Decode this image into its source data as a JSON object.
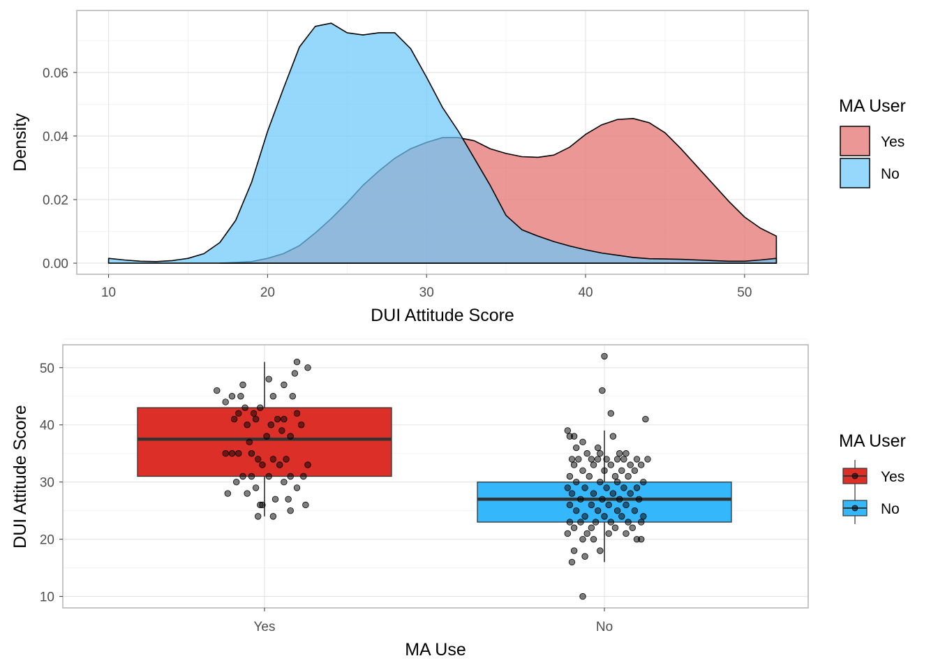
{
  "chart_data": [
    {
      "type": "area",
      "subtype": "density",
      "title": "",
      "xlabel": "DUI Attitude Score",
      "ylabel": "Density",
      "xlim": [
        8,
        54
      ],
      "ylim": [
        -0.0035,
        0.0795
      ],
      "x_ticks": [
        10,
        20,
        30,
        40,
        50
      ],
      "y_ticks": [
        0.0,
        0.02,
        0.04,
        0.06
      ],
      "y_tick_labels": [
        "0.00",
        "0.02",
        "0.04",
        "0.06"
      ],
      "grid": true,
      "legend": {
        "title": "MA User",
        "position": "right",
        "entries": [
          {
            "label": "Yes",
            "color": "#e57d7b"
          },
          {
            "label": "No",
            "color": "#6ac7fb"
          }
        ]
      },
      "series": [
        {
          "name": "Yes",
          "color": "#e57d7b",
          "opacity": 0.8,
          "x": [
            17,
            19,
            20,
            21,
            22,
            23,
            24,
            25,
            26,
            27,
            28,
            29,
            30,
            31,
            32,
            33,
            34,
            35,
            36,
            37,
            38,
            39,
            40,
            41,
            42,
            43,
            44,
            45,
            46,
            47,
            48,
            49,
            50,
            51,
            52
          ],
          "y": [
            0,
            0.0005,
            0.0015,
            0.003,
            0.0055,
            0.0095,
            0.014,
            0.019,
            0.0245,
            0.029,
            0.033,
            0.036,
            0.038,
            0.0395,
            0.0395,
            0.0385,
            0.036,
            0.0345,
            0.0335,
            0.0333,
            0.034,
            0.0365,
            0.0405,
            0.0435,
            0.0452,
            0.0455,
            0.0442,
            0.041,
            0.036,
            0.0305,
            0.025,
            0.0195,
            0.0145,
            0.011,
            0.0085
          ]
        },
        {
          "name": "No",
          "color": "#6ac7fb",
          "opacity": 0.7,
          "x": [
            10,
            11,
            12,
            13,
            14,
            15,
            16,
            17,
            18,
            19,
            20,
            21,
            22,
            23,
            24,
            25,
            26,
            27,
            28,
            29,
            30,
            31,
            32,
            33,
            34,
            35,
            36,
            37,
            38,
            39,
            40,
            41,
            42,
            43,
            44,
            45,
            46,
            47,
            48,
            49,
            50,
            51,
            52
          ],
          "y": [
            0.0015,
            0.001,
            0.0006,
            0.0005,
            0.0008,
            0.0015,
            0.003,
            0.0065,
            0.0135,
            0.0255,
            0.0415,
            0.055,
            0.068,
            0.0745,
            0.0755,
            0.0725,
            0.0718,
            0.0725,
            0.0725,
            0.0675,
            0.0585,
            0.049,
            0.0415,
            0.033,
            0.0245,
            0.015,
            0.0105,
            0.0085,
            0.0068,
            0.0054,
            0.0042,
            0.0032,
            0.0025,
            0.0018,
            0.0014,
            0.0013,
            0.0012,
            0.001,
            0.0008,
            0.0006,
            0.0006,
            0.001,
            0.0015
          ]
        }
      ]
    },
    {
      "type": "box",
      "title": "",
      "xlabel": "MA Use",
      "ylabel": "DUI Attitude Score",
      "categories": [
        "Yes",
        "No"
      ],
      "ylim": [
        8,
        54
      ],
      "y_ticks": [
        10,
        20,
        30,
        40,
        50
      ],
      "grid": true,
      "legend": {
        "title": "MA User",
        "position": "right",
        "entries": [
          {
            "label": "Yes",
            "color": "#dc2f27"
          },
          {
            "label": "No",
            "color": "#35b7fb"
          }
        ]
      },
      "boxes": [
        {
          "name": "Yes",
          "color": "#dc2f27",
          "q1": 31,
          "median": 37.5,
          "q3": 43,
          "whisker_low": 24,
          "whisker_high": 51
        },
        {
          "name": "No",
          "color": "#35b7fb",
          "q1": 23,
          "median": 27,
          "q3": 30,
          "whisker_low": 16,
          "whisker_high": 39
        }
      ],
      "points": {
        "Yes": [
          [
            -0.22,
            46
          ],
          [
            -0.18,
            44
          ],
          [
            -0.15,
            45
          ],
          [
            -0.11,
            45
          ],
          [
            -0.1,
            47
          ],
          [
            -0.04,
            41
          ],
          [
            -0.02,
            43
          ],
          [
            0.02,
            48
          ],
          [
            0.04,
            45
          ],
          [
            0.09,
            47
          ],
          [
            0.14,
            49
          ],
          [
            0.13,
            45
          ],
          [
            0.2,
            50
          ],
          [
            0.15,
            51
          ],
          [
            -0.09,
            43
          ],
          [
            -0.05,
            42
          ],
          [
            0.06,
            41
          ],
          [
            0.09,
            41
          ],
          [
            0.15,
            42
          ],
          [
            0.17,
            40
          ],
          [
            -0.12,
            42
          ],
          [
            -0.14,
            41
          ],
          [
            -0.08,
            40
          ],
          [
            0.03,
            40
          ],
          [
            0.08,
            39
          ],
          [
            0.12,
            38
          ],
          [
            0.01,
            38
          ],
          [
            -0.07,
            37
          ],
          [
            -0.12,
            35
          ],
          [
            -0.18,
            35
          ],
          [
            -0.15,
            35
          ],
          [
            -0.06,
            35
          ],
          [
            -0.03,
            34
          ],
          [
            0.04,
            34
          ],
          [
            0.1,
            34
          ],
          [
            0.2,
            33
          ],
          [
            0.07,
            33
          ],
          [
            -0.01,
            33
          ],
          [
            -0.06,
            31
          ],
          [
            -0.1,
            31
          ],
          [
            0.02,
            31
          ],
          [
            0.12,
            31
          ],
          [
            0.18,
            31
          ],
          [
            -0.13,
            30
          ],
          [
            0.09,
            30
          ],
          [
            -0.04,
            29
          ],
          [
            0.15,
            29
          ],
          [
            -0.17,
            28
          ],
          [
            -0.08,
            28
          ],
          [
            0.05,
            27
          ],
          [
            -0.02,
            26
          ],
          [
            -0.01,
            26
          ],
          [
            0.11,
            27
          ],
          [
            0.19,
            26
          ],
          [
            0.12,
            25
          ],
          [
            -0.03,
            24
          ],
          [
            0.04,
            24
          ]
        ],
        "No": [
          [
            0.0,
            52
          ],
          [
            -0.01,
            46
          ],
          [
            0.03,
            42
          ],
          [
            0.19,
            41
          ],
          [
            -0.17,
            39
          ],
          [
            -0.16,
            38
          ],
          [
            -0.14,
            38
          ],
          [
            0.04,
            38
          ],
          [
            -0.1,
            37
          ],
          [
            -0.03,
            36
          ],
          [
            -0.13,
            36
          ],
          [
            0.07,
            35
          ],
          [
            -0.02,
            35
          ],
          [
            -0.08,
            35
          ],
          [
            0.1,
            35
          ],
          [
            -0.15,
            34
          ],
          [
            -0.12,
            34
          ],
          [
            -0.06,
            34
          ],
          [
            -0.03,
            34
          ],
          [
            0.01,
            34
          ],
          [
            0.06,
            34
          ],
          [
            0.09,
            34
          ],
          [
            0.15,
            34
          ],
          [
            0.2,
            34
          ],
          [
            -0.14,
            33
          ],
          [
            -0.05,
            33
          ],
          [
            0.03,
            33
          ],
          [
            0.12,
            33
          ],
          [
            0.17,
            33
          ],
          [
            -0.1,
            32
          ],
          [
            0.0,
            32
          ],
          [
            0.08,
            32
          ],
          [
            0.14,
            32
          ],
          [
            -0.16,
            31
          ],
          [
            -0.07,
            31
          ],
          [
            0.05,
            31
          ],
          [
            0.11,
            31
          ],
          [
            -0.13,
            30
          ],
          [
            -0.02,
            30
          ],
          [
            0.06,
            30
          ],
          [
            0.18,
            30
          ],
          [
            -0.17,
            29
          ],
          [
            -0.09,
            29
          ],
          [
            0.01,
            29
          ],
          [
            0.09,
            29
          ],
          [
            0.15,
            29
          ],
          [
            -0.15,
            28
          ],
          [
            -0.05,
            28
          ],
          [
            0.04,
            28
          ],
          [
            0.12,
            28
          ],
          [
            -0.11,
            27
          ],
          [
            -0.01,
            27
          ],
          [
            0.07,
            27
          ],
          [
            0.16,
            27
          ],
          [
            -0.16,
            26
          ],
          [
            -0.06,
            26
          ],
          [
            0.02,
            26
          ],
          [
            0.1,
            26
          ],
          [
            -0.13,
            25
          ],
          [
            -0.03,
            25
          ],
          [
            0.06,
            25
          ],
          [
            0.14,
            25
          ],
          [
            -0.09,
            24
          ],
          [
            0.0,
            24
          ],
          [
            0.08,
            24
          ],
          [
            0.18,
            24
          ],
          [
            -0.16,
            23
          ],
          [
            -0.11,
            23
          ],
          [
            -0.04,
            23
          ],
          [
            0.03,
            23
          ],
          [
            0.11,
            23
          ],
          [
            0.17,
            23
          ],
          [
            -0.14,
            22
          ],
          [
            -0.06,
            22
          ],
          [
            0.05,
            22
          ],
          [
            0.13,
            22
          ],
          [
            -0.17,
            21
          ],
          [
            -0.08,
            21
          ],
          [
            0.02,
            21
          ],
          [
            0.1,
            21
          ],
          [
            -0.1,
            20
          ],
          [
            -0.05,
            20
          ],
          [
            0.15,
            20
          ],
          [
            0.17,
            20
          ],
          [
            -0.14,
            18
          ],
          [
            -0.02,
            18
          ],
          [
            -0.15,
            16
          ],
          [
            -0.09,
            17
          ],
          [
            -0.1,
            10
          ]
        ]
      }
    }
  ]
}
